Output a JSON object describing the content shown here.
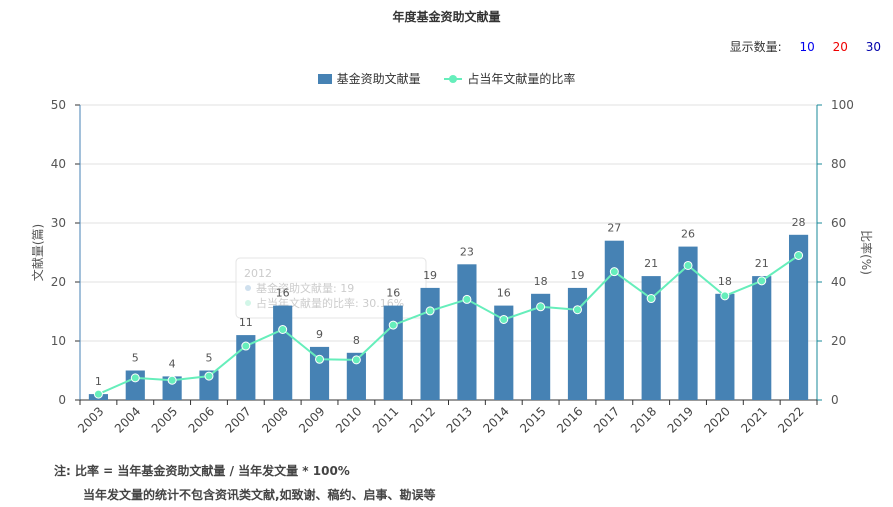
{
  "title": "年度基金资助文献量",
  "display_count": {
    "label": "显示数量:",
    "options": [
      {
        "text": "10",
        "color": "#0000ee"
      },
      {
        "text": "20",
        "color": "#ee0000"
      },
      {
        "text": "30",
        "color": "#0000aa"
      }
    ]
  },
  "notes": {
    "line1": "注:   比率 = 当年基金资助文献量 / 当年发文量 * 100%",
    "line2": "当年发文量的统计不包含资讯类文献,如致谢、稿约、启事、勘误等"
  },
  "chart_data": {
    "type": "bar",
    "categories": [
      "2003",
      "2004",
      "2005",
      "2006",
      "2007",
      "2008",
      "2009",
      "2010",
      "2011",
      "2012",
      "2013",
      "2014",
      "2015",
      "2016",
      "2017",
      "2018",
      "2019",
      "2020",
      "2021",
      "2022"
    ],
    "series": [
      {
        "name": "基金资助文献量",
        "type": "bar",
        "axis": "left",
        "color": "#4682b4",
        "values": [
          1,
          5,
          4,
          5,
          11,
          16,
          9,
          8,
          16,
          19,
          23,
          16,
          18,
          19,
          27,
          21,
          26,
          18,
          21,
          28
        ]
      },
      {
        "name": "占当年文献量的比率",
        "type": "line",
        "axis": "right",
        "color": "#66eebb",
        "values": [
          2,
          7.5,
          6.7,
          8.1,
          18.3,
          23.9,
          13.8,
          13.6,
          25.4,
          30.2,
          34.1,
          27.3,
          31.6,
          30.6,
          43.5,
          34.4,
          45.6,
          35.3,
          40.4,
          49
        ]
      }
    ],
    "ylabel_left": "文献量(篇)",
    "ylabel_right": "比率(%)",
    "ylim_left": [
      0,
      50
    ],
    "ylim_right": [
      0,
      100
    ],
    "yticks_left": [
      0,
      10,
      20,
      30,
      40,
      50
    ],
    "yticks_right": [
      0,
      20,
      40,
      60,
      80,
      100
    ],
    "grid": true,
    "legend_position": "top-center",
    "tooltip": {
      "category": "2012",
      "line1": "基金资助文献量: 19",
      "line2": "占当年文献量的比率: 30.16%"
    }
  }
}
